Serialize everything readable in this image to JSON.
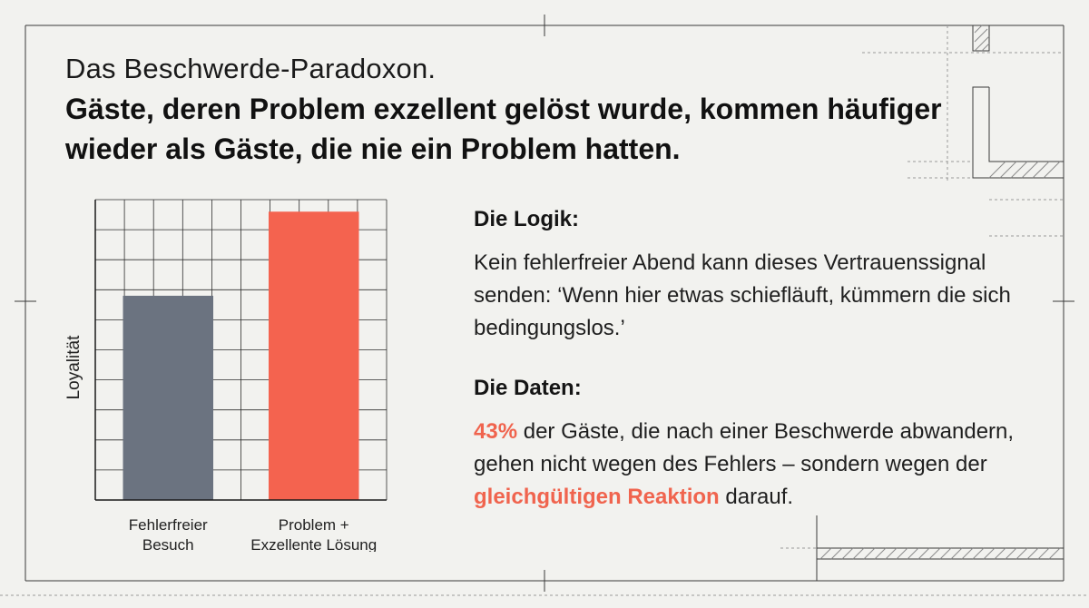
{
  "header": {
    "title": "Das Beschwerde-Paradoxon.",
    "headline": "Gäste, deren Problem exzellent gelöst wurde, kommen häufiger wieder als Gäste, die nie ein Problem hatten."
  },
  "logic": {
    "heading": "Die Logik:",
    "text": "Kein fehlerfreier Abend kann dieses Vertrauenssignal senden: ‘Wenn hier etwas schiefläuft, kümmern die sich bedingungslos.’"
  },
  "data_section": {
    "heading": "Die Daten:",
    "stat": "43%",
    "text_a": " der Gäste, die nach einer Beschwerde abwandern, gehen nicht wegen des Fehlers – sondern wegen der ",
    "highlight": "gleichgültigen Reaktion",
    "text_b": " darauf."
  },
  "colors": {
    "accent": "#f0644e",
    "bar_gray": "#6b7380",
    "bar_red": "#f4634f",
    "text": "#1a1a1a",
    "background": "#f2f2ef"
  },
  "chart_data": {
    "type": "bar",
    "categories": [
      [
        "Fehlerfreier",
        "Besuch"
      ],
      [
        "Problem +",
        "Exzellente Lösung"
      ]
    ],
    "values": [
      0.68,
      0.96
    ],
    "ylabel": "Loyalität",
    "xlabel": "",
    "title": "",
    "ylim": [
      0,
      1
    ],
    "grid": true,
    "bar_colors": [
      "#6b7380",
      "#f4634f"
    ]
  }
}
